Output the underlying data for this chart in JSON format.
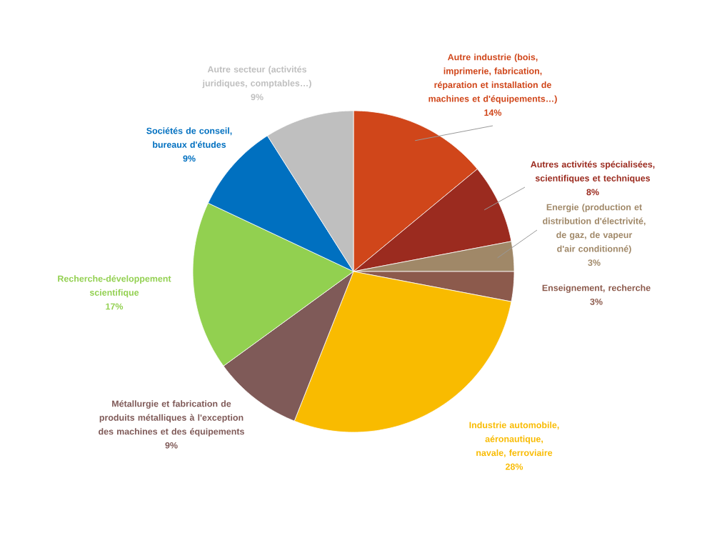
{
  "chart_data": {
    "type": "pie",
    "categories": [
      "Autre industrie (bois, imprimerie, fabrication, réparation et installation de machines et d'équipements…)",
      "Autres activités spécialisées, scientifiques et techniques",
      "Energie (production et distribution d'électrivité, de gaz, de vapeur d'air conditionné)",
      "Enseignement, recherche",
      "Industrie automobile, aéronautique, navale, ferroviaire",
      "Métallurgie et fabrication de produits métalliques à l'exception des machines et des équipements",
      "Recherche-développement scientifique",
      "Sociétés de conseil, bureaux d'études",
      "Autre secteur (activités juridiques, comptables…)"
    ],
    "values": [
      14,
      8,
      3,
      3,
      28,
      9,
      17,
      9,
      9
    ],
    "colors": [
      "#d0461a",
      "#9b2b1f",
      "#a08868",
      "#8c5a4c",
      "#f9bb00",
      "#7f5a58",
      "#92d050",
      "#0070c0",
      "#bfbfbf"
    ],
    "value_labels": [
      "14%",
      "8%",
      "3%",
      "3%",
      "28%",
      "9%",
      "17%",
      "9%",
      "9%"
    ]
  }
}
